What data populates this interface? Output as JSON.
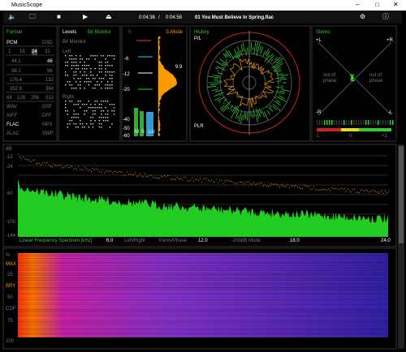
{
  "window": {
    "title": "MusicScope"
  },
  "toolbar": {
    "elapsed": "0:04:36",
    "separator": "/",
    "total": "0:04:58",
    "track": "01 You Must Believe In Spring.flac"
  },
  "format": {
    "title": "Format",
    "pcm": "PCM",
    "dsd": "DSD",
    "bits": [
      "1",
      "16",
      "24",
      "32"
    ],
    "rates": [
      [
        "44.1",
        "48"
      ],
      [
        "88.2",
        "96"
      ],
      [
        "176.4",
        "192"
      ],
      [
        "352.8",
        "384"
      ]
    ],
    "dsd_rates": [
      "64",
      "128",
      "256",
      "512"
    ],
    "containers": [
      [
        "WAV",
        "DSF"
      ],
      [
        "AIFF",
        "DFF"
      ],
      [
        "FLAC",
        "MP3"
      ],
      [
        "ALAC",
        "SWP"
      ]
    ]
  },
  "levels": {
    "title": "Levels",
    "mode": "Bit Monitor",
    "subtitle": "Bit Monitor",
    "left": "Left",
    "right": "Right"
  },
  "meters": {
    "top": "0",
    "mode": "S-Mode",
    "scale": [
      "-6",
      "-12",
      "-20",
      "-40",
      "-50",
      "-60"
    ],
    "reading": "9.9",
    "bars": [
      "M",
      "S",
      "LU"
    ]
  },
  "history": {
    "title": "History",
    "top": "P/L",
    "bottom": "PLR"
  },
  "stereo": {
    "title": "Stereo",
    "top_left": "+L",
    "top_right": "+R",
    "bottom_left": "-R",
    "bottom_right": "-L",
    "left_note": "out of phase",
    "right_note": "out of phase",
    "scale": [
      "-1",
      "0",
      "+1"
    ]
  },
  "spectrum": {
    "unit": "dB",
    "scale": [
      "-12",
      "-24",
      "-60",
      "-100",
      "-144"
    ],
    "caption": "Linear Frequency Spectrum [kHz]",
    "freqs": [
      "6.0",
      "12.0",
      "18.0",
      "24.0"
    ],
    "modes": [
      "Left/Right",
      "Pan/s/Phase",
      "-200dB Mode"
    ]
  },
  "spectrogram": {
    "scale": [
      "%",
      "MAX",
      "25",
      "BRY",
      "50",
      "CDF",
      "75",
      "100"
    ]
  }
}
